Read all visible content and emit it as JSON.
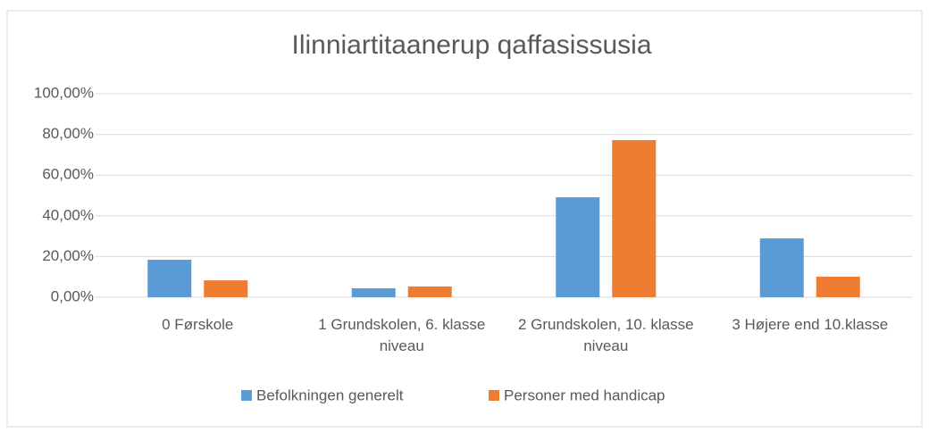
{
  "chart_data": {
    "type": "bar",
    "title": "Ilinniartitaanerup qaffasissusia",
    "categories": [
      "0 Førskole",
      "1 Grundskolen, 6. klasse niveau",
      "2 Grundskolen, 10. klasse niveau",
      "3 Højere end 10.klasse"
    ],
    "series": [
      {
        "name": "Befolkningen generelt",
        "color": "#5b9bd5",
        "values": [
          18.4,
          4.4,
          49.1,
          28.9
        ]
      },
      {
        "name": "Personer med handicap",
        "color": "#ed7d31",
        "values": [
          8.3,
          5.3,
          77.2,
          10.1
        ]
      }
    ],
    "ylim": [
      0,
      100
    ],
    "yticks": [
      {
        "value": 0,
        "label": "0,00%"
      },
      {
        "value": 20,
        "label": "20,00%"
      },
      {
        "value": 40,
        "label": "40,00%"
      },
      {
        "value": 60,
        "label": "60,00%"
      },
      {
        "value": 80,
        "label": "80,00%"
      },
      {
        "value": 100,
        "label": "100,00%"
      }
    ],
    "grid": true,
    "legend": "bottom"
  }
}
